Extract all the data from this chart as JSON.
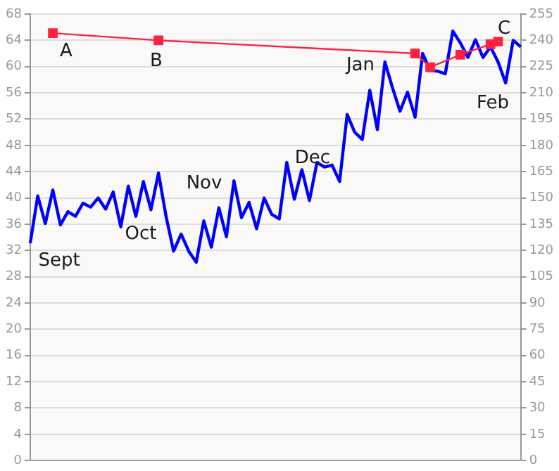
{
  "chart_data": {
    "type": "line",
    "categories": [
      null,
      null,
      null,
      null,
      null,
      null,
      null,
      null,
      null,
      null,
      null,
      null,
      null,
      null,
      null,
      null,
      null,
      null,
      null,
      null,
      null,
      null,
      null,
      null,
      null,
      null,
      null,
      null,
      null,
      null,
      null,
      null,
      null,
      null,
      null,
      null,
      null,
      null,
      null,
      null,
      null,
      null,
      null,
      null,
      null,
      null,
      null,
      null,
      null,
      null,
      null,
      null,
      null,
      null,
      null,
      null,
      null,
      null,
      null,
      null,
      null,
      null,
      null,
      null,
      null,
      null
    ],
    "ylim": [
      0,
      68
    ],
    "yticks": [
      0,
      4,
      8,
      12,
      16,
      20,
      24,
      28,
      32,
      36,
      40,
      44,
      48,
      52,
      56,
      60,
      64,
      68
    ],
    "y2lim": [
      0,
      255
    ],
    "y2ticks": [
      0,
      15,
      30,
      45,
      60,
      75,
      90,
      105,
      120,
      135,
      150,
      165,
      180,
      195,
      210,
      225,
      240,
      255
    ],
    "tick_labels": "y",
    "grid": "y",
    "legend": false,
    "series": [
      {
        "color": "#0000ff",
        "marker": "none",
        "values": [
          33.1,
          40.3,
          36.1,
          41.2,
          35.9,
          37.9,
          37.2,
          39.2,
          38.6,
          40,
          38.3,
          40.9,
          35.6,
          41.8,
          37.2,
          42.5,
          38.2,
          43.8,
          37.2,
          31.9,
          34.5,
          31.9,
          30.2,
          36.5,
          32.5,
          38.5,
          34.1,
          42.6,
          37,
          39.3,
          35.3,
          40,
          37.5,
          36.8,
          45.4,
          39.8,
          44.3,
          39.6,
          45.4,
          44.7,
          45,
          42.5,
          52.7,
          50,
          48.9,
          56.4,
          50.4,
          60.7,
          56.8,
          53.2,
          56.1,
          52.3,
          62,
          59.4,
          59.3,
          58.9,
          65.4,
          63.6,
          61.4,
          64.1,
          61.4,
          63,
          60.7,
          57.5,
          64,
          63
        ]
      },
      {
        "color": "#ff2040",
        "marker": "square",
        "values": [
          null,
          null,
          null,
          65.1,
          null,
          null,
          null,
          null,
          null,
          null,
          null,
          null,
          null,
          null,
          null,
          null,
          null,
          64,
          null,
          null,
          null,
          null,
          null,
          null,
          null,
          null,
          null,
          null,
          null,
          null,
          null,
          null,
          null,
          null,
          null,
          null,
          null,
          null,
          null,
          null,
          null,
          null,
          null,
          null,
          null,
          null,
          null,
          null,
          null,
          null,
          null,
          62,
          null,
          59.9,
          null,
          null,
          null,
          61.8,
          null,
          null,
          null,
          63.4,
          63.8,
          null,
          null,
          null
        ]
      }
    ],
    "annotations": [
      "Sept",
      "Oct",
      "Nov",
      "Dec",
      "Jan",
      "Feb",
      "A",
      "B",
      "C"
    ]
  }
}
